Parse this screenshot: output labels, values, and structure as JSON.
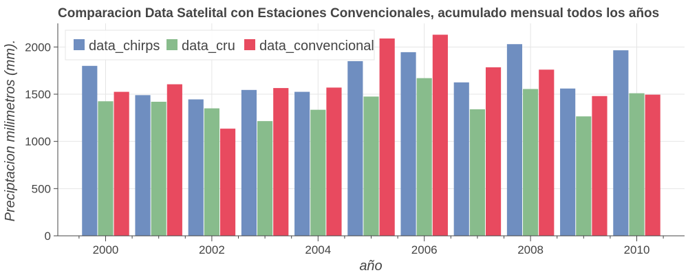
{
  "chart_data": {
    "type": "bar",
    "title": "Comparacion Data Satelital con Estaciones Convencionales, acumulado mensual todos los años",
    "xlabel": "año",
    "ylabel": "Preciptacion milimetros (mm).",
    "categories": [
      "2000",
      "2001",
      "2002",
      "2003",
      "2004",
      "2005",
      "2006",
      "2007",
      "2008",
      "2009",
      "2010"
    ],
    "x_tick_labels": [
      "2000",
      "2002",
      "2004",
      "2006",
      "2008",
      "2010"
    ],
    "y_ticks": [
      0,
      500,
      1000,
      1500,
      2000
    ],
    "ylim": [
      0,
      2250
    ],
    "xlim": [
      1999.1,
      2010.9
    ],
    "grid": true,
    "legend_position": "top-left",
    "series": [
      {
        "name": "data_chirps",
        "color": "#6f8ec0",
        "values": [
          1800,
          1490,
          1445,
          1545,
          1525,
          1850,
          1945,
          1625,
          2030,
          1560,
          1965
        ]
      },
      {
        "name": "data_cru",
        "color": "#88bc8c",
        "values": [
          1425,
          1420,
          1350,
          1215,
          1335,
          1475,
          1670,
          1340,
          1555,
          1265,
          1510
        ]
      },
      {
        "name": "data_convencional",
        "color": "#e84a5f",
        "values": [
          1525,
          1605,
          1135,
          1565,
          1570,
          2090,
          2130,
          1785,
          1760,
          1480,
          1495
        ]
      }
    ]
  }
}
